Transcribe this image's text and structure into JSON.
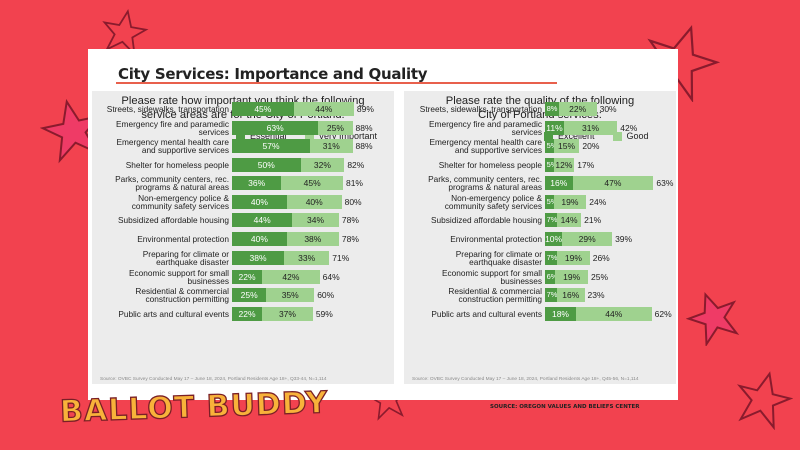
{
  "slide_title": "City Services: Importance and Quality",
  "brand": "BALLOT BUDDY",
  "source": "SOURCE: OREGON VALUES AND BELIEFS CENTER",
  "colors": {
    "background": "#f2424f",
    "dark_series": "#4e9b44",
    "light_series": "#9fd28f",
    "star_fill": "#ef3b66",
    "star_outline": "#8a1b2d",
    "accent_rule": "#e8604c"
  },
  "chart_data": [
    {
      "type": "bar",
      "orientation": "horizontal-stacked",
      "title": "Please rate how important you think the following service areas are for the City of Portland:",
      "title_lines": [
        "Please rate how important you think the following",
        "service areas are for the City of Portland:"
      ],
      "categories": [
        "Streets, sidewalks, transportation",
        "Emergency fire and paramedic services",
        "Emergency mental health care and supportive services",
        "Shelter for homeless people",
        "Parks, community centers, rec. programs & natural areas",
        "Non-emergency police & community safety services",
        "Subsidized affordable housing",
        "Environmental protection",
        "Preparing for climate or earthquake disaster",
        "Economic support for small businesses",
        "Residential & commercial construction permitting",
        "Public arts and cultural events"
      ],
      "category_lines": [
        [
          "Streets, sidewalks, transportation"
        ],
        [
          "Emergency fire and paramedic",
          "services"
        ],
        [
          "Emergency mental health care",
          "and supportive services"
        ],
        [
          "Shelter for homeless people"
        ],
        [
          "Parks, community centers, rec.",
          "programs & natural areas"
        ],
        [
          "Non-emergency police &",
          "community safety services"
        ],
        [
          "Subsidized affordable housing"
        ],
        [
          "Environmental protection"
        ],
        [
          "Preparing for climate or",
          "earthquake disaster"
        ],
        [
          "Economic support for small",
          "businesses"
        ],
        [
          "Residential & commercial",
          "construction permitting"
        ],
        [
          "Public arts and cultural events"
        ]
      ],
      "series": [
        {
          "name": "Essential",
          "values": [
            45,
            63,
            57,
            50,
            36,
            40,
            44,
            40,
            38,
            22,
            25,
            22
          ],
          "color": "#4e9b44"
        },
        {
          "name": "Very Important",
          "values": [
            44,
            25,
            31,
            32,
            45,
            40,
            34,
            38,
            33,
            42,
            35,
            37
          ],
          "color": "#9fd28f"
        }
      ],
      "value_labels": [
        [
          "45%",
          "63%",
          "57%",
          "50%",
          "36%",
          "40%",
          "44%",
          "40%",
          "38%",
          "22%",
          "25%",
          "22%"
        ],
        [
          "44%",
          "25%",
          "31%",
          "32%",
          "45%",
          "40%",
          "34%",
          "38%",
          "33%",
          "42%",
          "35%",
          "37%"
        ]
      ],
      "totals": [
        "89%",
        "88%",
        "88%",
        "82%",
        "81%",
        "80%",
        "78%",
        "78%",
        "71%",
        "64%",
        "60%",
        "59%"
      ],
      "xlim": [
        0,
        100
      ],
      "legend": "top",
      "note": "Source: OVBC Survey Conducted May 17 – June 18, 2024, Portland Residents Age 18+, Q33-44, N=1,114"
    },
    {
      "type": "bar",
      "orientation": "horizontal-stacked",
      "title": "Please rate the quality of the following City of Portland services:",
      "title_lines": [
        "Please rate the quality of the following",
        "City of Portland services:"
      ],
      "categories": [
        "Streets, sidewalks, transportation",
        "Emergency fire and paramedic services",
        "Emergency mental health care and supportive services",
        "Shelter for homeless people",
        "Parks, community centers, rec. programs & natural areas",
        "Non-emergency police & community safety services",
        "Subsidized affordable housing",
        "Environmental protection",
        "Preparing for climate or earthquake disaster",
        "Economic support for small businesses",
        "Residential & commercial construction permitting",
        "Public arts and cultural events"
      ],
      "category_lines": [
        [
          "Streets, sidewalks, transportation"
        ],
        [
          "Emergency fire and paramedic",
          "services"
        ],
        [
          "Emergency mental health care",
          "and supportive services"
        ],
        [
          "Shelter for homeless people"
        ],
        [
          "Parks, community centers, rec.",
          "programs & natural areas"
        ],
        [
          "Non-emergency police &",
          "community safety services"
        ],
        [
          "Subsidized affordable housing"
        ],
        [
          "Environmental protection"
        ],
        [
          "Preparing for climate or",
          "earthquake disaster"
        ],
        [
          "Economic support for small",
          "businesses"
        ],
        [
          "Residential & commercial",
          "construction permitting"
        ],
        [
          "Public arts and cultural events"
        ]
      ],
      "series": [
        {
          "name": "Excellent",
          "values": [
            8,
            11,
            5,
            5,
            16,
            5,
            7,
            10,
            7,
            6,
            7,
            18
          ],
          "color": "#4e9b44"
        },
        {
          "name": "Good",
          "values": [
            22,
            31,
            15,
            12,
            47,
            19,
            14,
            29,
            19,
            19,
            16,
            44
          ],
          "color": "#9fd28f"
        }
      ],
      "value_labels": [
        [
          "8%",
          "11%",
          "5%",
          "5%",
          "16%",
          "5%",
          "7%",
          "10%",
          "7%",
          "6%",
          "7%",
          "18%"
        ],
        [
          "22%",
          "31%",
          "15%",
          "12%",
          "47%",
          "19%",
          "14%",
          "29%",
          "19%",
          "19%",
          "16%",
          "44%"
        ]
      ],
      "totals": [
        "30%",
        "42%",
        "20%",
        "17%",
        "63%",
        "24%",
        "21%",
        "39%",
        "26%",
        "25%",
        "23%",
        "62%"
      ],
      "xlim": [
        0,
        100
      ],
      "legend": "top",
      "note": "Source: OVBC Survey Conducted May 17 – June 18, 2024, Portland Residents Age 18+, Q45-56, N=1,114"
    }
  ]
}
